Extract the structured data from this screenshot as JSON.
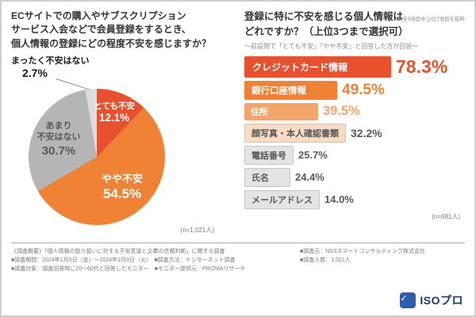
{
  "left_panel": {
    "title_lines": [
      "ECサイトでの購入やサブスクリプション",
      "サービス入会などで会員登録をするとき、",
      "個人情報の登録にどの程度不安を感じますか？"
    ],
    "pie": {
      "colors": [
        "#e8512e",
        "#ef8234",
        "#b5b5b6",
        "#dcdddd"
      ],
      "segments": [
        {
          "line1": "とても不安",
          "value": "12.1%"
        },
        {
          "line1": "やや不安",
          "value": "54.5%"
        },
        {
          "line1": "あまり",
          "line2": "不安はない",
          "value": "30.7%"
        },
        {
          "line1": "まったく不安はない",
          "value": "2.7%"
        }
      ]
    },
    "note_n": "(n=1,021人)"
  },
  "right_panel": {
    "note_top": "※全9項目中上位7項目を抜粋",
    "title_lines": [
      "登録に特に不安を感じる個人情報は",
      "どれですか？（上位3つまで選択可）"
    ],
    "note_sub": "～前設問で「とても不安」「やや不安」と回答した方が回答～",
    "bars": [
      {
        "label": "クレジットカード情報",
        "value": "78.3%",
        "bg": "#e8512e",
        "fg": "#ffffff",
        "pct_color": "#e8512e"
      },
      {
        "label": "銀行口座情報",
        "value": "49.5%",
        "bg": "#ef8234",
        "fg": "#ffffff",
        "pct_color": "#ef8234"
      },
      {
        "label": "住所",
        "value": "39.5%",
        "bg": "#f4a56b",
        "fg": "#ffffff",
        "pct_color": "#f4a56b"
      },
      {
        "label": "顔写真・本人確認書類",
        "value": "32.2%",
        "bg": "#fbdcc3",
        "fg": "#595757",
        "pct_color": "#595757"
      },
      {
        "label": "電話番号",
        "value": "25.7%",
        "bg": "#e4e4e5",
        "fg": "#595757",
        "pct_color": "#595757"
      },
      {
        "label": "氏名",
        "value": "24.4%",
        "bg": "#e4e4e5",
        "fg": "#595757",
        "pct_color": "#595757"
      },
      {
        "label": "メールアドレス",
        "value": "14.0%",
        "bg": "#e4e4e5",
        "fg": "#595757",
        "pct_color": "#595757"
      }
    ],
    "note_n": "(n=681人)"
  },
  "footer": {
    "left_lines": [
      "《調査概要》「個人情報の取り扱いに対する不安意識と企業の信頼判断」に関する調査",
      "■調査期間：2024年1月5日（金）～2024年1月9日（火）　■調査方法：インターネット調査",
      "■調査対象：調査回答時に20～60代と回答したモニター　■モニター提供元：PRIZMAリサーチ"
    ],
    "right_lines": [
      "■調査元：NSSスマートコンサルティング株式会社",
      "■調査人数：1,021人"
    ],
    "logo_text": "ISOプロ"
  },
  "chart_data": [
    {
      "type": "pie",
      "title": "ECサイトでの購入やサブスクリプションサービス入会などで会員登録をするとき、個人情報の登録にどの程度不安を感じますか？",
      "labels": [
        "とても不安",
        "やや不安",
        "あまり不安はない",
        "まったく不安はない"
      ],
      "values": [
        12.1,
        54.5,
        30.7,
        2.7
      ],
      "unit": "%",
      "colors": [
        "#e8512e",
        "#ef8234",
        "#b5b5b6",
        "#dcdddd"
      ],
      "start_angle": "top",
      "direction": "clockwise",
      "n_label": "(n=1,021人)"
    },
    {
      "type": "bar",
      "orientation": "horizontal",
      "title": "登録に特に不安を感じる個人情報はどれですか？（上位3つまで選択可）",
      "categories": [
        "クレジットカード情報",
        "銀行口座情報",
        "住所",
        "顔写真・本人確認書類",
        "電話番号",
        "氏名",
        "メールアドレス"
      ],
      "values": [
        78.3,
        49.5,
        39.5,
        32.2,
        25.7,
        24.4,
        14.0
      ],
      "unit": "%",
      "xlim": [
        0,
        100
      ],
      "n_label": "(n=681人)",
      "note": "※全9項目中上位7項目を抜粋"
    }
  ]
}
